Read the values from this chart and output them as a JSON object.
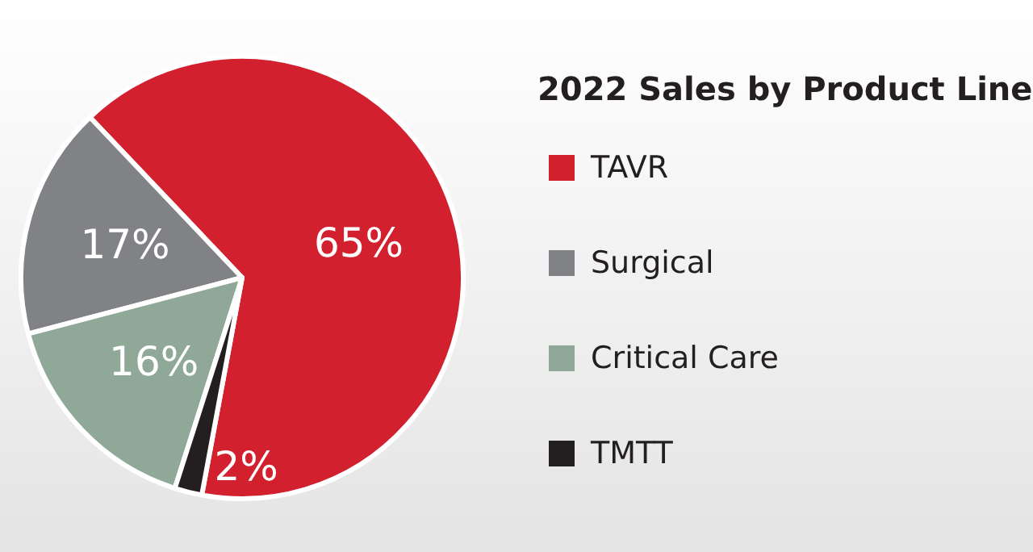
{
  "chart_data": {
    "type": "pie",
    "title": "2022 Sales by Product Line",
    "categories": [
      "TAVR",
      "Surgical",
      "Critical Care",
      "TMTT"
    ],
    "values": [
      65,
      17,
      16,
      2
    ],
    "colors": [
      "#d2202f",
      "#808285",
      "#8fa898",
      "#231f20"
    ],
    "value_labels": [
      "65%",
      "17%",
      "16%",
      "2%"
    ],
    "legend": "right"
  }
}
